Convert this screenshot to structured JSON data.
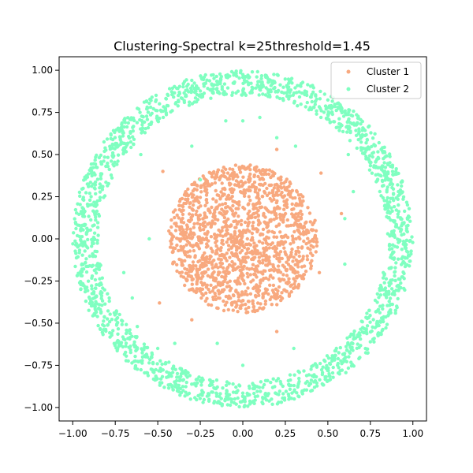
{
  "chart_data": {
    "type": "scatter",
    "title": "Clustering-Spectral k=25threshold=1.45",
    "xlabel": "",
    "ylabel": "",
    "xlim": [
      -1.08,
      1.08
    ],
    "ylim": [
      -1.08,
      1.08
    ],
    "x_ticks": [
      -1.0,
      -0.75,
      -0.5,
      -0.25,
      0.0,
      0.25,
      0.5,
      0.75,
      1.0
    ],
    "x_tick_labels": [
      "−1.00",
      "−0.75",
      "−0.50",
      "−0.25",
      "0.00",
      "0.25",
      "0.50",
      "0.75",
      "1.00"
    ],
    "y_ticks": [
      1.0,
      0.75,
      0.5,
      0.25,
      0.0,
      -0.25,
      -0.5,
      -0.75,
      -1.0
    ],
    "y_tick_labels": [
      "1.00",
      "0.75",
      "0.50",
      "0.25",
      "0.00",
      "−0.25",
      "−0.50",
      "−0.75",
      "−1.00"
    ],
    "grid": false,
    "legend_position": "top-right",
    "series": [
      {
        "name": "Cluster 1",
        "color": "#f8a97f",
        "shape": "disk",
        "center": [
          0.0,
          0.0
        ],
        "radius": [
          0.0,
          0.44
        ],
        "count": 1500,
        "outliers": [
          [
            0.45,
            -0.2
          ],
          [
            0.46,
            0.39
          ],
          [
            0.58,
            0.15
          ],
          [
            -0.49,
            -0.38
          ],
          [
            -0.3,
            -0.48
          ],
          [
            0.2,
            -0.55
          ],
          [
            -0.47,
            0.4
          ],
          [
            0.2,
            0.53
          ]
        ]
      },
      {
        "name": "Cluster 2",
        "color": "#7fffc0",
        "shape": "ring",
        "center": [
          0.0,
          0.0
        ],
        "radius": [
          0.85,
          1.0
        ],
        "count": 1900,
        "outliers": [
          [
            -0.1,
            0.7
          ],
          [
            0.0,
            0.7
          ],
          [
            0.1,
            0.72
          ],
          [
            -0.3,
            0.55
          ],
          [
            -0.6,
            0.5
          ],
          [
            0.62,
            0.5
          ],
          [
            0.6,
            0.12
          ],
          [
            -0.7,
            -0.2
          ],
          [
            -0.65,
            -0.35
          ],
          [
            0.55,
            -0.65
          ],
          [
            -0.5,
            -0.65
          ],
          [
            0.0,
            -0.75
          ],
          [
            -0.15,
            -0.62
          ],
          [
            -0.25,
            0.35
          ],
          [
            0.31,
            0.55
          ],
          [
            -0.4,
            -0.62
          ],
          [
            0.3,
            -0.65
          ],
          [
            0.6,
            -0.15
          ],
          [
            -0.55,
            0.0
          ],
          [
            0.65,
            0.28
          ],
          [
            -0.62,
            -0.52
          ],
          [
            0.2,
            0.6
          ]
        ]
      }
    ]
  }
}
